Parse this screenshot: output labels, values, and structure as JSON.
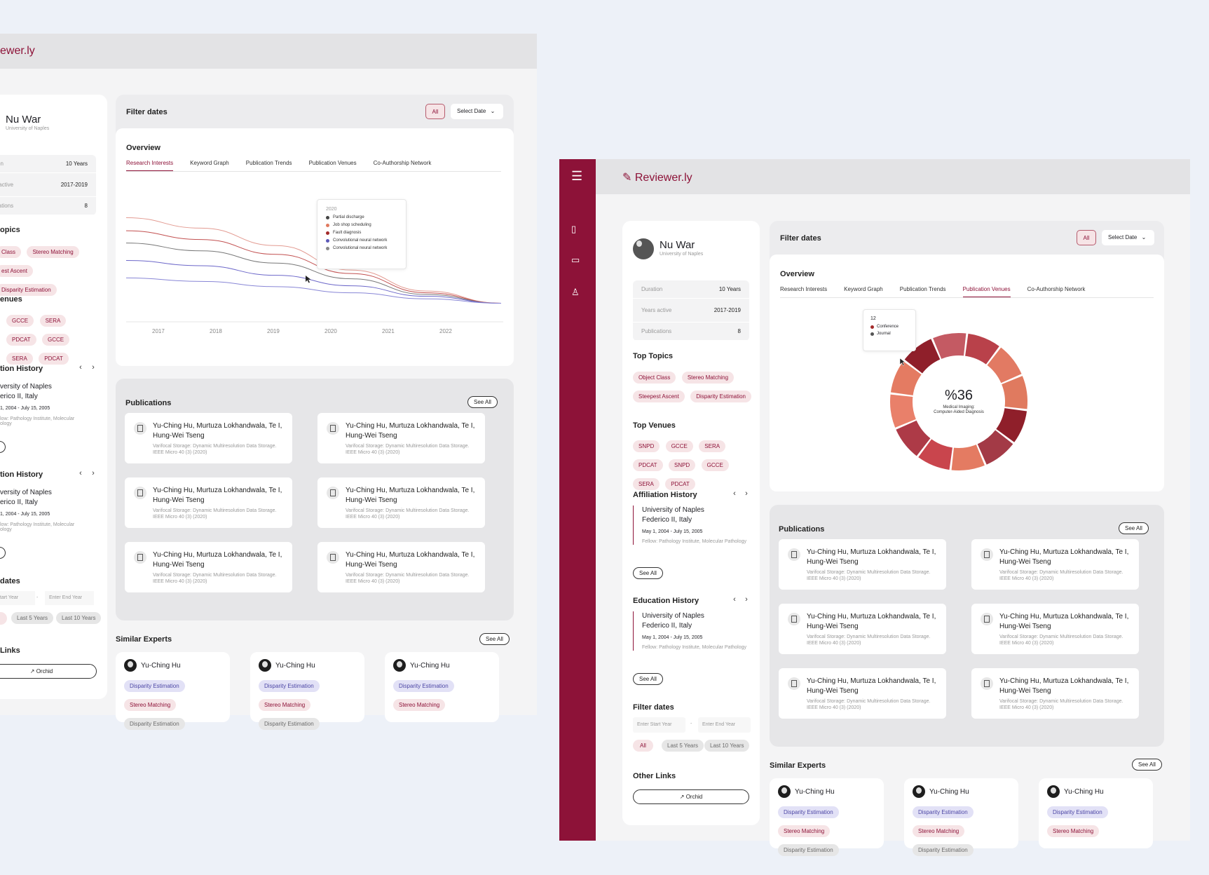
{
  "brand": "Reviewer.ly",
  "brand_cropped": "ewer.ly",
  "profile": {
    "name": "Nu War",
    "affiliation": "University of Naples",
    "stats": [
      {
        "label": "Duration",
        "value": "10 Years"
      },
      {
        "label": "Years active",
        "value": "2017-2019"
      },
      {
        "label": "Publications",
        "value": "8"
      }
    ],
    "cropped_stats": [
      {
        "label": "tion",
        "value": "10 Years"
      },
      {
        "label": "s active",
        "value": "2017-2019"
      },
      {
        "label": "ications",
        "value": "8"
      }
    ]
  },
  "top_topics": {
    "title": "Top Topics",
    "cropped_title": "opics",
    "items": [
      "Object Class",
      "Stereo Matching",
      "Steepest Ascent",
      "Disparity Estimation"
    ],
    "cropped_items": [
      "Class",
      "Stereo Matching",
      "est Ascent",
      "Disparity Estimation"
    ]
  },
  "top_venues": {
    "title": "Top Venues",
    "cropped_title": "enues",
    "items": [
      "SNPD",
      "GCCE",
      "SERA",
      "PDCAT",
      "SNPD",
      "GCCE",
      "SERA",
      "PDCAT"
    ]
  },
  "affiliation_history": {
    "title": "Affiliation History",
    "cropped_title": "tion History",
    "institution": "University of Naples Federico II, Italy",
    "inst_line1": "University of Naples",
    "inst_line2": "Federico II, Italy",
    "inst_line1_cropped": "versity of Naples",
    "inst_line2_cropped": "erico II, Italy",
    "dates": "May 1, 2004 - July 15, 2005",
    "dates_cropped": "1, 2004 - July 15, 2005",
    "role": "Fellow: Pathology Institute, Molecular Pathology",
    "role_cropped_1": "low: Pathology Institute, Molecular",
    "role_cropped_2": "ology",
    "see_all": "See All",
    "see_all_cropped": "ll"
  },
  "education_history": {
    "title": "Education History",
    "cropped_title": "tion History"
  },
  "filter_dates_side": {
    "title": "Filter dates",
    "cropped_title": "dates",
    "start_placeholder": "Enter Start Year",
    "start_placeholder_cropped": "tart Year",
    "end_placeholder": "Enter End Year",
    "dash": "-",
    "options": [
      "All",
      "Last 5 Years",
      "Last 10 Years"
    ]
  },
  "other_links": {
    "title": "Other Links",
    "cropped_title": "Links",
    "button": "Orchid"
  },
  "filter_bar": {
    "title": "Filter dates",
    "all": "All",
    "select": "Select Date"
  },
  "overview": {
    "title": "Overview",
    "tabs": [
      "Research Interests",
      "Keyword Graph",
      "Publication Trends",
      "Publication Venues",
      "Co-Authorship Network"
    ],
    "active_left": "Research Interests",
    "active_right": "Publication Venues"
  },
  "line_tooltip": {
    "year": "2020",
    "items": [
      {
        "label": "Partial discharge",
        "color": "#444444"
      },
      {
        "label": "Job shop scheduling",
        "color": "#e07a5f"
      },
      {
        "label": "Fault diagnosis",
        "color": "#a32a2a"
      },
      {
        "label": "Convolutional neural network",
        "color": "#5b58b8"
      },
      {
        "label": "Convolutional neural network",
        "color": "#888888"
      }
    ]
  },
  "donut": {
    "value": "%36",
    "label": "Medical Imaging: Computer-Aided Diagnosis",
    "label_line1": "Medical Imaging:",
    "label_line2": "Computer-Aided Diagnosis",
    "tooltip_count": "12",
    "legend": [
      {
        "label": "Conference",
        "color": "#a32a2a"
      },
      {
        "label": "Journal",
        "color": "#555555"
      }
    ]
  },
  "chart_data": [
    {
      "type": "line",
      "title": "Research Interests",
      "x": [
        2017,
        2018,
        2019,
        2020,
        2021,
        2022
      ],
      "xlabel": "",
      "ylabel": "",
      "series": [
        {
          "name": "Job shop scheduling",
          "color": "#e39b92",
          "values": [
            100,
            88,
            68,
            40,
            16,
            2
          ]
        },
        {
          "name": "Fault diagnosis",
          "color": "#c25050",
          "values": [
            85,
            75,
            58,
            36,
            14,
            2
          ]
        },
        {
          "name": "Partial discharge",
          "color": "#777777",
          "values": [
            71,
            62,
            48,
            30,
            12,
            2
          ]
        },
        {
          "name": "Convolutional neural network",
          "color": "#6c67c9",
          "values": [
            51,
            45,
            34,
            22,
            10,
            2
          ]
        },
        {
          "name": "Convolutional neural network",
          "color": "#8886d6",
          "values": [
            31,
            27,
            21,
            14,
            7,
            2
          ]
        }
      ],
      "ylim": [
        0,
        110
      ],
      "grid": false
    },
    {
      "type": "pie",
      "title": "Publication Venues",
      "categories": [
        "s1",
        "s2",
        "s3",
        "s4",
        "s5",
        "s6",
        "s7",
        "s8",
        "s9",
        "s10",
        "s11",
        "s12"
      ],
      "values": [
        1,
        1,
        1,
        1,
        1,
        1,
        1,
        1,
        1,
        1,
        1,
        1
      ],
      "colors": [
        "#b9414a",
        "#e27a63",
        "#e07a5f",
        "#8f1f2a",
        "#a33a46",
        "#e47b62",
        "#c9454d",
        "#ad3a47",
        "#e9806a",
        "#e47b62",
        "#8f1f2a",
        "#c45a63"
      ],
      "center_text": "%36"
    }
  ],
  "publications": {
    "title": "Publications",
    "see_all": "See All",
    "items": [
      {
        "authors": "Yu-Ching Hu, Murtuza Lokhandwala, Te I, Hung-Wei Tseng",
        "venue": "Varifocal Storage: Dynamic Multiresolution Data Storage. IEEE Micro 40 (3) (2020)"
      },
      {
        "authors": "Yu-Ching Hu, Murtuza Lokhandwala, Te I, Hung-Wei Tseng",
        "venue": "Varifocal Storage: Dynamic Multiresolution Data Storage. IEEE Micro 40 (3) (2020)"
      },
      {
        "authors": "Yu-Ching Hu, Murtuza Lokhandwala, Te I, Hung-Wei Tseng",
        "venue": "Varifocal Storage: Dynamic Multiresolution Data Storage. IEEE Micro 40 (3) (2020)"
      },
      {
        "authors": "Yu-Ching Hu, Murtuza Lokhandwala, Te I, Hung-Wei Tseng",
        "venue": "Varifocal Storage: Dynamic Multiresolution Data Storage. IEEE Micro 40 (3) (2020)"
      },
      {
        "authors": "Yu-Ching Hu, Murtuza Lokhandwala, Te I, Hung-Wei Tseng",
        "venue": "Varifocal Storage: Dynamic Multiresolution Data Storage. IEEE Micro 40 (3) (2020)"
      },
      {
        "authors": "Yu-Ching Hu, Murtuza Lokhandwala, Te I, Hung-Wei Tseng",
        "venue": "Varifocal Storage: Dynamic Multiresolution Data Storage. IEEE Micro 40 (3) (2020)"
      }
    ]
  },
  "similar_experts": {
    "title": "Similar Experts",
    "see_all": "See All",
    "name": "Yu-Ching Hu",
    "tags": [
      "Disparity Estimation",
      "Stereo Matching",
      "Disparity Estimation"
    ]
  },
  "accent": "#8d1238"
}
